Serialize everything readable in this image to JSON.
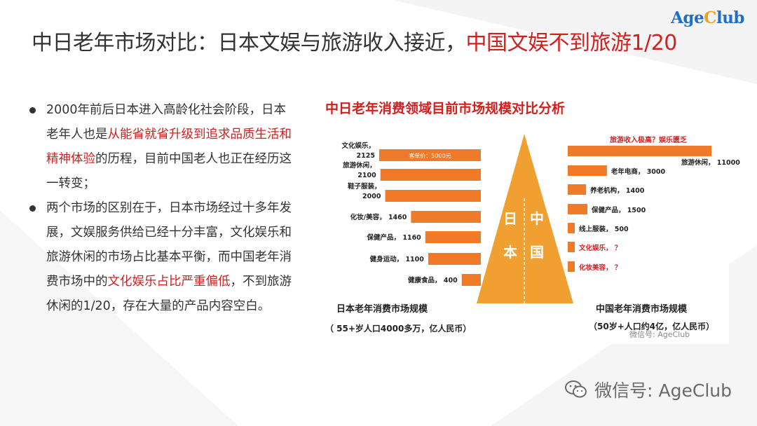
{
  "logo": {
    "part1": "Age",
    "part2": "C",
    "part3": "lub"
  },
  "title": {
    "black": "中日老年市场对比：日本文娱与旅游收入接近，",
    "red": "中国文娱不到旅游1/20"
  },
  "bullets": [
    {
      "parts": [
        {
          "text": "2000年前后日本进入高龄化社会阶段，日本老年人也是",
          "red": false
        },
        {
          "text": "从能省就省升级到追求品质生活和精神体验",
          "red": true
        },
        {
          "text": "的历程，目前中国老人也正在经历这一转变；",
          "red": false
        }
      ]
    },
    {
      "parts": [
        {
          "text": "两个市场的区别在于，日本市场经过十多年发展，文娱服务供给已经十分丰富，文化娱乐和旅游休闲的市场占比基本平衡，而中国老年消费市场中的",
          "red": false
        },
        {
          "text": "文化娱乐占比严重偏低",
          "red": true
        },
        {
          "text": "，不到旅游休闲的1/20，存在大量的产品内容空白。",
          "red": false
        }
      ]
    }
  ],
  "chart": {
    "heading": "中日老年消费领域目前市场规模对比分析",
    "pyramid_left": [
      "日",
      "本"
    ],
    "pyramid_right": [
      "中",
      "国"
    ],
    "bar_annotation": "客单价：5000元",
    "china_note": "旅游收入极高？娱乐匮乏",
    "japan_footer": [
      "日本老年消费市场规模",
      "（ 55+岁人口4000多万，亿人民币）"
    ],
    "china_footer": [
      "中国老年消费市场规模",
      "（50岁+人口约4亿，亿人民币）"
    ],
    "watermark": "微信号: AgeClub",
    "colors": {
      "bar": "#f07a28",
      "pyramid": "#f0a030",
      "accent_red": "#d41f1f"
    }
  },
  "chart_data": [
    {
      "type": "bar",
      "orientation": "horizontal",
      "direction": "right-to-left",
      "categories": [
        "文化娱乐",
        "旅游休闲",
        "鞋子服装",
        "化妆/美容",
        "保健产品",
        "健身运动",
        "健康食品"
      ],
      "labels": [
        "文化娱乐，",
        "旅游休闲，",
        "鞋子服装，",
        "化妆/美容，",
        "保健产品，",
        "健身运动，",
        "健康食品，"
      ],
      "values": [
        2125,
        2100,
        2000,
        1460,
        1160,
        1100,
        400
      ]
    },
    {
      "type": "bar",
      "orientation": "horizontal",
      "direction": "left-to-right",
      "categories": [
        "旅游休闲",
        "老年电商",
        "养老机构",
        "保健产品",
        "线上服装",
        "文化娱乐",
        "化妆美容"
      ],
      "labels": [
        "旅游休闲，",
        "老年电商，",
        "养老机构，",
        "保健产品，",
        "线上服装，",
        "文化娱乐，",
        "化妆美容，"
      ],
      "values": [
        11000,
        3000,
        1400,
        1500,
        500,
        null,
        null
      ],
      "value_texts": [
        "11000",
        "3000",
        "1400",
        "1500",
        "500",
        "？",
        "？"
      ]
    }
  ],
  "wechat": {
    "text": "微信号: AgeClub"
  }
}
